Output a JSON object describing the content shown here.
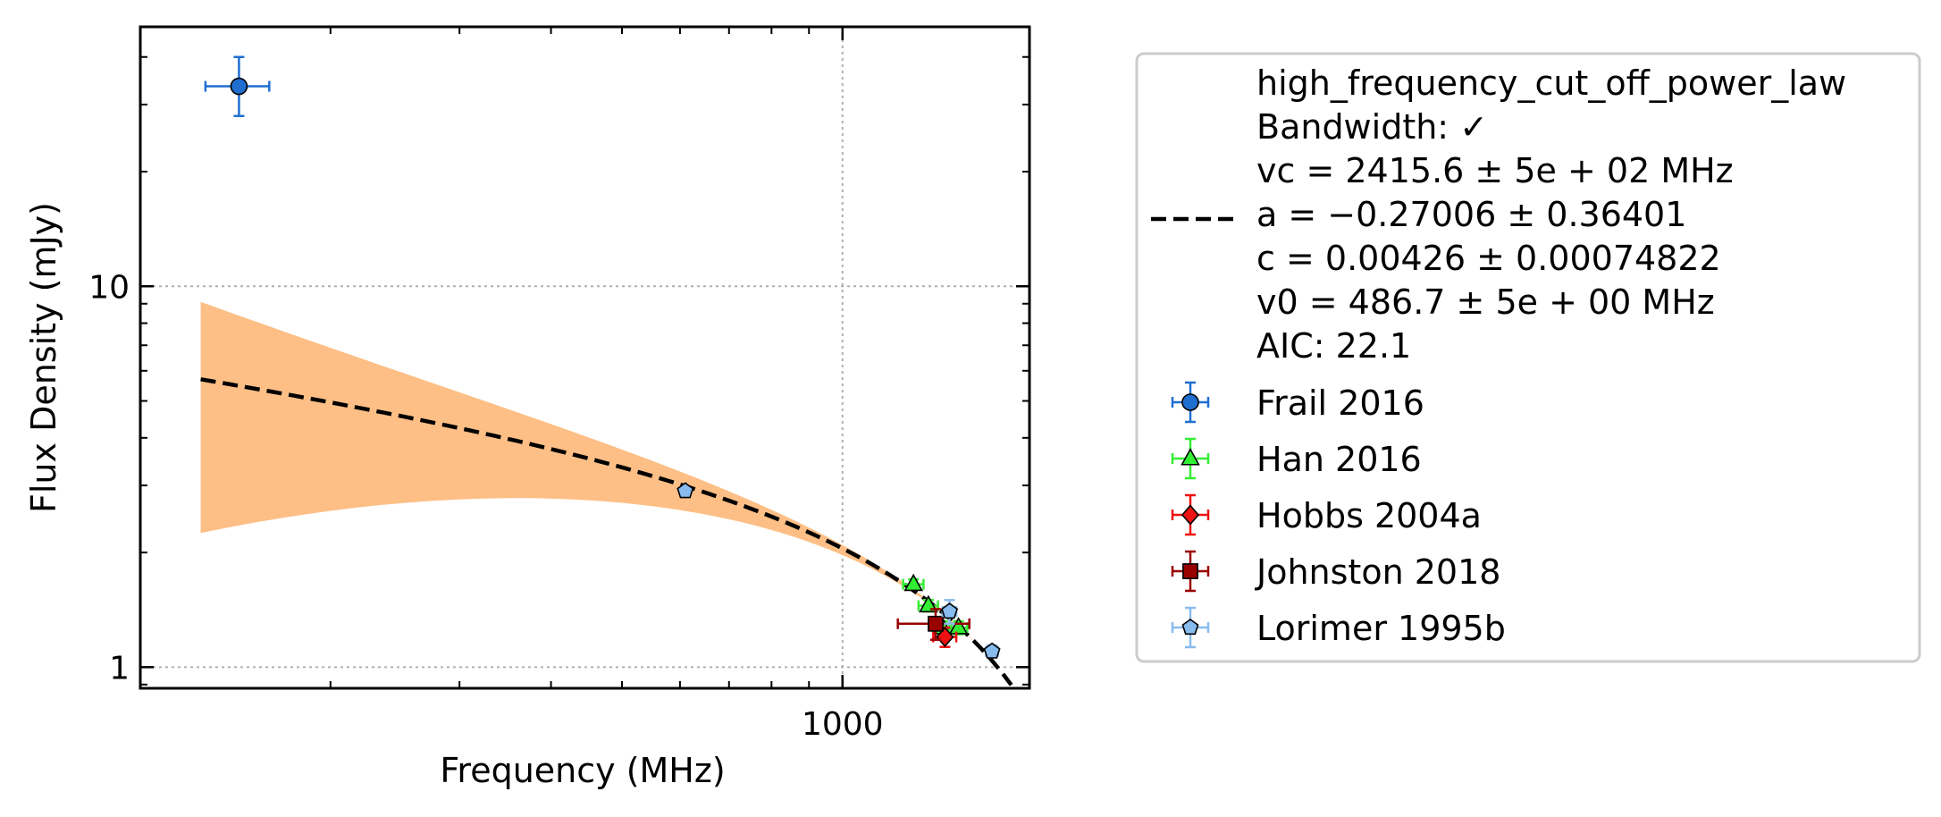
{
  "chart_data": {
    "type": "scatter",
    "xscale": "log",
    "yscale": "log",
    "xlabel": "Frequency (MHz)",
    "ylabel": "Flux Density (mJy)",
    "xlim": [
      110,
      1800
    ],
    "ylim": [
      0.88,
      48
    ],
    "grid": true,
    "legend_position": "outside-right",
    "x_tick_labels": [
      {
        "value": 1000,
        "label": "1000"
      }
    ],
    "y_tick_labels": [
      {
        "value": 1,
        "label": "1"
      },
      {
        "value": 10,
        "label": "10"
      }
    ],
    "fit": {
      "model": "high_frequency_cut_off_power_law",
      "color": "#000000",
      "band_color": "#fdbf86",
      "vc": 2415.6,
      "a": -0.27006,
      "c": 0.00426,
      "v0": 486.7,
      "x_range": [
        133,
        1700
      ],
      "curve_y_at_start": 5.7,
      "band_upper_at_start": 9.1,
      "band_lower_at_start": 2.25,
      "legend_lines": [
        "high_frequency_cut_off_power_law",
        "Bandwidth: ✓",
        "vc = 2415.6 ± 5e + 02 MHz",
        "a = −0.27006 ± 0.36401",
        "c = 0.00426 ± 0.00074822",
        "v0 = 486.7 ± 5e + 00 MHz",
        "AIC: 22.1"
      ]
    },
    "series": [
      {
        "name": "Frail 2016",
        "marker": "circle",
        "color": "#1f6fd1",
        "ecolor": "#1f6fd1",
        "points": [
          {
            "x": 150,
            "y": 33.5,
            "xerr": 15,
            "yerr_low": 5.5,
            "yerr_high": 6.5
          }
        ]
      },
      {
        "name": "Han 2016",
        "marker": "triangle",
        "color": "#33ee33",
        "ecolor": "#33ee33",
        "points": [
          {
            "x": 1250,
            "y": 1.65,
            "xerr": 40,
            "yerr_low": 0.05,
            "yerr_high": 0.05
          },
          {
            "x": 1310,
            "y": 1.45,
            "xerr": 40,
            "yerr_low": 0.05,
            "yerr_high": 0.05
          },
          {
            "x": 1370,
            "y": 1.27,
            "xerr": 40,
            "yerr_low": 0.05,
            "yerr_high": 0.05
          },
          {
            "x": 1440,
            "y": 1.27,
            "xerr": 40,
            "yerr_low": 0.05,
            "yerr_high": 0.05
          }
        ]
      },
      {
        "name": "Hobbs 2004a",
        "marker": "diamond",
        "color": "#ee1111",
        "ecolor": "#ee1111",
        "points": [
          {
            "x": 1380,
            "y": 1.2,
            "xerr": 50,
            "yerr_low": 0.07,
            "yerr_high": 0.07
          }
        ]
      },
      {
        "name": "Johnston 2018",
        "marker": "square",
        "color": "#990000",
        "ecolor": "#990000",
        "points": [
          {
            "x": 1340,
            "y": 1.3,
            "xerr": 150,
            "yerr_low": 0.12,
            "yerr_high": 0.12
          }
        ]
      },
      {
        "name": "Lorimer 1995b",
        "marker": "pentagon",
        "color": "#88bbee",
        "ecolor": "#88bbee",
        "points": [
          {
            "x": 610,
            "y": 2.9,
            "xerr": 5,
            "yerr_low": 0.05,
            "yerr_high": 0.05
          },
          {
            "x": 1400,
            "y": 1.4,
            "xerr": 30,
            "yerr_low": 0.1,
            "yerr_high": 0.1
          },
          {
            "x": 1600,
            "y": 1.1,
            "xerr": 30,
            "yerr_low": 0.04,
            "yerr_high": 0.04
          }
        ]
      }
    ]
  }
}
